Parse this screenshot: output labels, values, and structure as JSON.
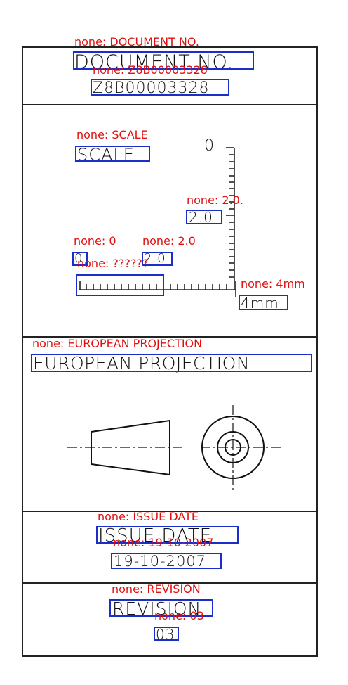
{
  "document_number": {
    "label": "DOCUMENT NO.",
    "value": "Z8B00003328"
  },
  "scale": {
    "label": "SCALE",
    "ruler_top": "0",
    "ruler_mid": "2.0",
    "left_zero": "0",
    "left_value": "2.0",
    "ruler_bottom": "4mm"
  },
  "projection": {
    "label": "EUROPEAN PROJECTION"
  },
  "issue_date": {
    "label": "ISSUE DATE",
    "value": "19-10-2007"
  },
  "revision": {
    "label": "REVISION",
    "value": "03"
  },
  "annotations": {
    "doc_no": "none: DOCUMENT NO.",
    "doc_val": "none: Z8B00003328",
    "scale": "none: SCALE",
    "ruler_mid": "none: 2.0.",
    "left_zero": "none: 0",
    "left_value": "none: 2.0",
    "ruler_small": "none: ??????",
    "ruler_4mm": "none: 4mm",
    "projection": "none: EUROPEAN PROJECTION",
    "issue": "none: ISSUE DATE",
    "issue_val": "none: 19-10-2007",
    "revision": "none: REVISION",
    "revision_val": "none: 03"
  },
  "colors": {
    "annotation": "#e01010",
    "box": "#1a2fc9",
    "line": "#222222"
  }
}
